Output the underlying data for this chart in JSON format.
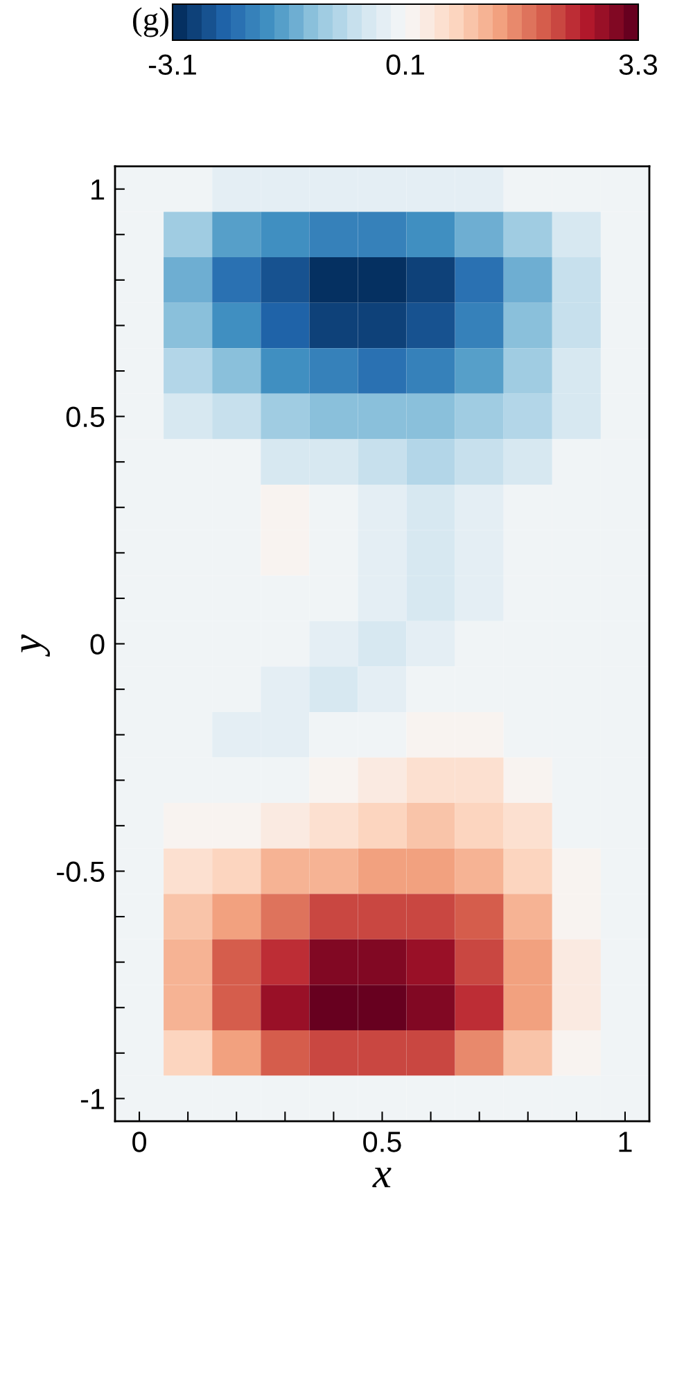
{
  "chart_data": {
    "type": "heatmap",
    "title": "(g)",
    "xlabel": "x",
    "ylabel": "y",
    "categories": [
      "0",
      null,
      null,
      null,
      null,
      "0.5",
      null,
      null,
      null,
      null,
      "1"
    ],
    "y_categories": [
      "1",
      null,
      null,
      null,
      null,
      "0.5",
      null,
      null,
      null,
      null,
      "0",
      null,
      null,
      null,
      null,
      "-0.5",
      null,
      null,
      null,
      null,
      "-1"
    ],
    "clim": [
      -3.1,
      3.3
    ],
    "cticks": [
      -3.1,
      0.1,
      3.3
    ],
    "cells": [
      [
        0,
        -0.1,
        -0.2,
        -0.2,
        -0.2,
        -0.2,
        -0.2,
        -0.2,
        -0.1,
        -0.1,
        0
      ],
      [
        0,
        -1.0,
        -1.6,
        -1.9,
        -2.0,
        -2.0,
        -1.8,
        -1.4,
        -0.9,
        -0.4,
        0
      ],
      [
        0,
        -1.4,
        -2.2,
        -2.7,
        -3.0,
        -3.1,
        -2.8,
        -2.2,
        -1.4,
        -0.6,
        0
      ],
      [
        0,
        -1.2,
        -1.9,
        -2.5,
        -2.8,
        -2.9,
        -2.6,
        -2.0,
        -1.3,
        -0.6,
        0
      ],
      [
        0,
        -0.8,
        -1.3,
        -1.8,
        -2.1,
        -2.2,
        -2.0,
        -1.6,
        -1.1,
        -0.5,
        0
      ],
      [
        0,
        -0.3,
        -0.6,
        -0.9,
        -1.2,
        -1.3,
        -1.3,
        -1.1,
        -0.7,
        -0.3,
        0
      ],
      [
        0,
        -0.1,
        -0.1,
        -0.3,
        -0.4,
        -0.6,
        -0.7,
        -0.6,
        -0.3,
        -0.1,
        0
      ],
      [
        0,
        0,
        0.1,
        0.2,
        0,
        -0.2,
        -0.3,
        -0.2,
        -0.1,
        -0.1,
        0
      ],
      [
        0,
        0,
        0.1,
        0.2,
        0.1,
        -0.2,
        -0.3,
        -0.2,
        -0.1,
        -0.1,
        0
      ],
      [
        0,
        0,
        0,
        0,
        -0.1,
        -0.2,
        -0.3,
        -0.2,
        -0.1,
        -0.1,
        0
      ],
      [
        0,
        0,
        0,
        -0.1,
        -0.2,
        -0.3,
        -0.2,
        -0.1,
        -0.1,
        0,
        0
      ],
      [
        0,
        0,
        -0.1,
        -0.2,
        -0.3,
        -0.2,
        -0.1,
        0,
        0,
        0,
        0
      ],
      [
        0,
        -0.1,
        -0.2,
        -0.2,
        -0.1,
        0.1,
        0.2,
        0.2,
        0.1,
        0,
        0
      ],
      [
        0,
        -0.1,
        -0.1,
        0,
        0.2,
        0.4,
        0.5,
        0.5,
        0.3,
        0.1,
        0
      ],
      [
        0,
        0.2,
        0.2,
        0.4,
        0.6,
        0.8,
        0.9,
        0.8,
        0.5,
        0.1,
        0
      ],
      [
        0,
        0.6,
        0.8,
        1.1,
        1.3,
        1.5,
        1.5,
        1.3,
        0.8,
        0.2,
        0
      ],
      [
        0,
        0.9,
        1.4,
        1.8,
        2.1,
        2.3,
        2.2,
        1.9,
        1.1,
        0.3,
        0
      ],
      [
        0,
        1.1,
        1.9,
        2.5,
        2.9,
        3.0,
        2.8,
        2.3,
        1.4,
        0.4,
        0
      ],
      [
        0,
        1.2,
        2.0,
        2.8,
        3.2,
        3.3,
        3.0,
        2.4,
        1.5,
        0.4,
        0
      ],
      [
        0,
        0.8,
        1.4,
        1.9,
        2.2,
        2.3,
        2.1,
        1.7,
        1.0,
        0.3,
        0
      ],
      [
        0,
        0,
        0,
        0,
        0,
        0,
        0,
        0,
        0,
        0,
        0
      ]
    ]
  }
}
